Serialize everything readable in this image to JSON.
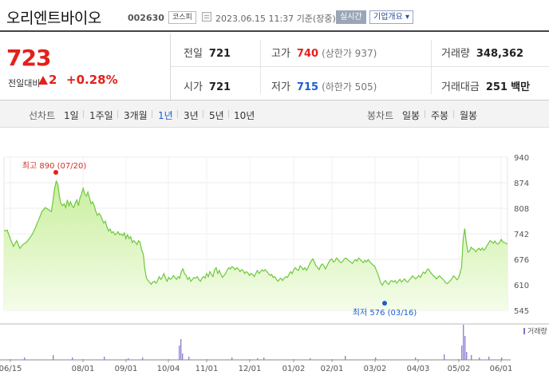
{
  "header": {
    "company": "오리엔트바이오",
    "code": "002630",
    "market": "코스피",
    "datetime": "2023.06.15 11:37 기준(장중)",
    "realtime": "실시간",
    "company_info": "기업개요",
    "company_info_arrow": "▾"
  },
  "quote": {
    "price": "723",
    "change_label": "전일대비",
    "change_value": "2",
    "change_rate": "+0.28%",
    "prev_close_label": "전일",
    "prev_close": "721",
    "high_label": "고가",
    "high": "740",
    "upper_limit": "(상한가 937)",
    "volume_label": "거래량",
    "volume": "348,362",
    "open_label": "시가",
    "open": "721",
    "low_label": "저가",
    "low": "715",
    "lower_limit": "(하한가 505)",
    "amount_label": "거래대금",
    "amount": "251",
    "amount_unit": "백만"
  },
  "periods": {
    "line_label": "선차트",
    "line_items": [
      "1일",
      "1주일",
      "3개월",
      "1년",
      "3년",
      "5년",
      "10년"
    ],
    "active": "1년",
    "candle_label": "봉차트",
    "candle_items": [
      "일봉",
      "주봉",
      "월봉"
    ]
  },
  "colors": {
    "up": "#e2211c",
    "down": "#1d5fd0",
    "line": "#6ec83c",
    "fill_top": "#c9ef9e",
    "fill_bottom": "#f4fce9"
  },
  "chart_data": {
    "type": "area",
    "y_ticks": [
      "940",
      "874",
      "808",
      "742",
      "676",
      "610",
      "545"
    ],
    "ylim": [
      545,
      940
    ],
    "x_ticks": [
      "06/15",
      "08/01",
      "09/01",
      "10/04",
      "11/01",
      "12/01",
      "01/02",
      "02/01",
      "03/02",
      "04/03",
      "05/02",
      "06/01"
    ],
    "high_annotation": "최고 890 (07/20)",
    "low_annotation": "최저 576 (03/16)",
    "volume_label": "거래량",
    "price_series": [
      [
        0,
        750
      ],
      [
        4,
        752
      ],
      [
        8,
        730
      ],
      [
        12,
        710
      ],
      [
        16,
        725
      ],
      [
        20,
        705
      ],
      [
        24,
        715
      ],
      [
        28,
        720
      ],
      [
        32,
        730
      ],
      [
        36,
        742
      ],
      [
        40,
        760
      ],
      [
        44,
        780
      ],
      [
        48,
        800
      ],
      [
        52,
        810
      ],
      [
        56,
        805
      ],
      [
        60,
        800
      ],
      [
        62,
        830
      ],
      [
        64,
        860
      ],
      [
        66,
        878
      ],
      [
        68,
        870
      ],
      [
        70,
        840
      ],
      [
        72,
        820
      ],
      [
        74,
        815
      ],
      [
        76,
        820
      ],
      [
        78,
        810
      ],
      [
        80,
        830
      ],
      [
        82,
        815
      ],
      [
        84,
        825
      ],
      [
        86,
        815
      ],
      [
        88,
        810
      ],
      [
        90,
        822
      ],
      [
        92,
        830
      ],
      [
        94,
        815
      ],
      [
        96,
        835
      ],
      [
        98,
        845
      ],
      [
        100,
        860
      ],
      [
        102,
        845
      ],
      [
        104,
        840
      ],
      [
        106,
        850
      ],
      [
        108,
        835
      ],
      [
        110,
        820
      ],
      [
        112,
        825
      ],
      [
        114,
        815
      ],
      [
        116,
        800
      ],
      [
        118,
        790
      ],
      [
        120,
        795
      ],
      [
        122,
        790
      ],
      [
        124,
        780
      ],
      [
        126,
        770
      ],
      [
        128,
        775
      ],
      [
        130,
        760
      ],
      [
        132,
        750
      ],
      [
        134,
        755
      ],
      [
        136,
        745
      ],
      [
        138,
        748
      ],
      [
        140,
        740
      ],
      [
        142,
        742
      ],
      [
        144,
        748
      ],
      [
        146,
        740
      ],
      [
        148,
        742
      ],
      [
        150,
        738
      ],
      [
        152,
        745
      ],
      [
        154,
        730
      ],
      [
        156,
        740
      ],
      [
        158,
        730
      ],
      [
        160,
        735
      ],
      [
        162,
        720
      ],
      [
        164,
        725
      ],
      [
        166,
        720
      ],
      [
        168,
        715
      ],
      [
        170,
        725
      ],
      [
        172,
        720
      ],
      [
        174,
        700
      ],
      [
        176,
        690
      ],
      [
        178,
        650
      ],
      [
        180,
        628
      ],
      [
        182,
        622
      ],
      [
        184,
        617
      ],
      [
        186,
        612
      ],
      [
        188,
        618
      ],
      [
        190,
        620
      ],
      [
        192,
        615
      ],
      [
        194,
        622
      ],
      [
        196,
        632
      ],
      [
        198,
        625
      ],
      [
        200,
        630
      ],
      [
        202,
        640
      ],
      [
        204,
        628
      ],
      [
        206,
        620
      ],
      [
        208,
        630
      ],
      [
        210,
        625
      ],
      [
        212,
        628
      ],
      [
        214,
        635
      ],
      [
        216,
        630
      ],
      [
        218,
        625
      ],
      [
        220,
        632
      ],
      [
        222,
        628
      ],
      [
        224,
        645
      ],
      [
        226,
        652
      ],
      [
        228,
        640
      ],
      [
        230,
        635
      ],
      [
        232,
        625
      ],
      [
        234,
        630
      ],
      [
        236,
        620
      ],
      [
        238,
        625
      ],
      [
        240,
        630
      ],
      [
        242,
        628
      ],
      [
        244,
        632
      ],
      [
        246,
        625
      ],
      [
        248,
        620
      ],
      [
        250,
        628
      ],
      [
        252,
        632
      ],
      [
        254,
        628
      ],
      [
        256,
        640
      ],
      [
        258,
        632
      ],
      [
        260,
        645
      ],
      [
        262,
        638
      ],
      [
        264,
        632
      ],
      [
        266,
        650
      ],
      [
        268,
        655
      ],
      [
        270,
        640
      ],
      [
        272,
        648
      ],
      [
        274,
        638
      ],
      [
        276,
        630
      ],
      [
        278,
        635
      ],
      [
        280,
        640
      ],
      [
        282,
        650
      ],
      [
        284,
        655
      ],
      [
        286,
        652
      ],
      [
        288,
        658
      ],
      [
        290,
        655
      ],
      [
        292,
        650
      ],
      [
        294,
        655
      ],
      [
        296,
        652
      ],
      [
        298,
        645
      ],
      [
        300,
        650
      ],
      [
        302,
        648
      ],
      [
        304,
        640
      ],
      [
        306,
        645
      ],
      [
        308,
        642
      ],
      [
        310,
        635
      ],
      [
        312,
        640
      ],
      [
        314,
        638
      ],
      [
        316,
        632
      ],
      [
        318,
        640
      ],
      [
        320,
        648
      ],
      [
        322,
        640
      ],
      [
        324,
        645
      ],
      [
        326,
        650
      ],
      [
        328,
        646
      ],
      [
        330,
        650
      ],
      [
        332,
        645
      ],
      [
        334,
        640
      ],
      [
        336,
        635
      ],
      [
        338,
        638
      ],
      [
        340,
        630
      ],
      [
        342,
        632
      ],
      [
        344,
        625
      ],
      [
        346,
        620
      ],
      [
        348,
        625
      ],
      [
        350,
        628
      ],
      [
        352,
        622
      ],
      [
        354,
        628
      ],
      [
        356,
        632
      ],
      [
        358,
        630
      ],
      [
        360,
        638
      ],
      [
        362,
        645
      ],
      [
        364,
        640
      ],
      [
        366,
        650
      ],
      [
        368,
        655
      ],
      [
        370,
        650
      ],
      [
        372,
        648
      ],
      [
        374,
        660
      ],
      [
        376,
        656
      ],
      [
        378,
        650
      ],
      [
        380,
        655
      ],
      [
        382,
        648
      ],
      [
        384,
        655
      ],
      [
        386,
        665
      ],
      [
        388,
        672
      ],
      [
        390,
        678
      ],
      [
        392,
        670
      ],
      [
        394,
        660
      ],
      [
        396,
        656
      ],
      [
        398,
        650
      ],
      [
        400,
        660
      ],
      [
        402,
        665
      ],
      [
        404,
        660
      ],
      [
        406,
        652
      ],
      [
        408,
        660
      ],
      [
        410,
        668
      ],
      [
        412,
        675
      ],
      [
        414,
        678
      ],
      [
        416,
        670
      ],
      [
        418,
        672
      ],
      [
        420,
        680
      ],
      [
        422,
        676
      ],
      [
        424,
        670
      ],
      [
        426,
        668
      ],
      [
        428,
        672
      ],
      [
        430,
        678
      ],
      [
        432,
        680
      ],
      [
        434,
        676
      ],
      [
        436,
        672
      ],
      [
        438,
        670
      ],
      [
        440,
        666
      ],
      [
        442,
        672
      ],
      [
        444,
        676
      ],
      [
        446,
        672
      ],
      [
        448,
        680
      ],
      [
        450,
        676
      ],
      [
        452,
        672
      ],
      [
        454,
        668
      ],
      [
        456,
        674
      ],
      [
        458,
        670
      ],
      [
        460,
        676
      ],
      [
        462,
        670
      ],
      [
        464,
        666
      ],
      [
        466,
        662
      ],
      [
        468,
        660
      ],
      [
        470,
        650
      ],
      [
        472,
        640
      ],
      [
        474,
        628
      ],
      [
        476,
        615
      ],
      [
        478,
        610
      ],
      [
        480,
        618
      ],
      [
        482,
        622
      ],
      [
        484,
        615
      ],
      [
        486,
        612
      ],
      [
        488,
        620
      ],
      [
        490,
        622
      ],
      [
        492,
        618
      ],
      [
        494,
        622
      ],
      [
        496,
        615
      ],
      [
        498,
        620
      ],
      [
        500,
        625
      ],
      [
        502,
        618
      ],
      [
        504,
        622
      ],
      [
        506,
        626
      ],
      [
        508,
        620
      ],
      [
        510,
        618
      ],
      [
        512,
        624
      ],
      [
        514,
        628
      ],
      [
        516,
        634
      ],
      [
        518,
        630
      ],
      [
        520,
        626
      ],
      [
        522,
        630
      ],
      [
        524,
        635
      ],
      [
        526,
        630
      ],
      [
        528,
        638
      ],
      [
        530,
        644
      ],
      [
        532,
        640
      ],
      [
        534,
        648
      ],
      [
        536,
        652
      ],
      [
        538,
        645
      ],
      [
        540,
        640
      ],
      [
        542,
        635
      ],
      [
        544,
        632
      ],
      [
        546,
        626
      ],
      [
        548,
        630
      ],
      [
        550,
        634
      ],
      [
        552,
        630
      ],
      [
        554,
        626
      ],
      [
        556,
        622
      ],
      [
        558,
        616
      ],
      [
        560,
        614
      ],
      [
        562,
        618
      ],
      [
        564,
        622
      ],
      [
        566,
        628
      ],
      [
        568,
        634
      ],
      [
        570,
        630
      ],
      [
        572,
        624
      ],
      [
        574,
        628
      ],
      [
        576,
        640
      ],
      [
        578,
        658
      ],
      [
        580,
        728
      ],
      [
        582,
        756
      ],
      [
        584,
        720
      ],
      [
        586,
        695
      ],
      [
        588,
        698
      ],
      [
        590,
        708
      ],
      [
        592,
        704
      ],
      [
        594,
        702
      ],
      [
        596,
        696
      ],
      [
        598,
        702
      ],
      [
        600,
        705
      ],
      [
        602,
        700
      ],
      [
        604,
        706
      ],
      [
        606,
        700
      ],
      [
        608,
        704
      ],
      [
        610,
        712
      ],
      [
        612,
        718
      ],
      [
        614,
        725
      ],
      [
        616,
        722
      ],
      [
        618,
        718
      ],
      [
        620,
        724
      ],
      [
        622,
        718
      ],
      [
        624,
        716
      ],
      [
        626,
        720
      ],
      [
        628,
        728
      ],
      [
        630,
        722
      ],
      [
        632,
        720
      ],
      [
        634,
        718
      ],
      [
        636,
        716
      ]
    ]
  }
}
